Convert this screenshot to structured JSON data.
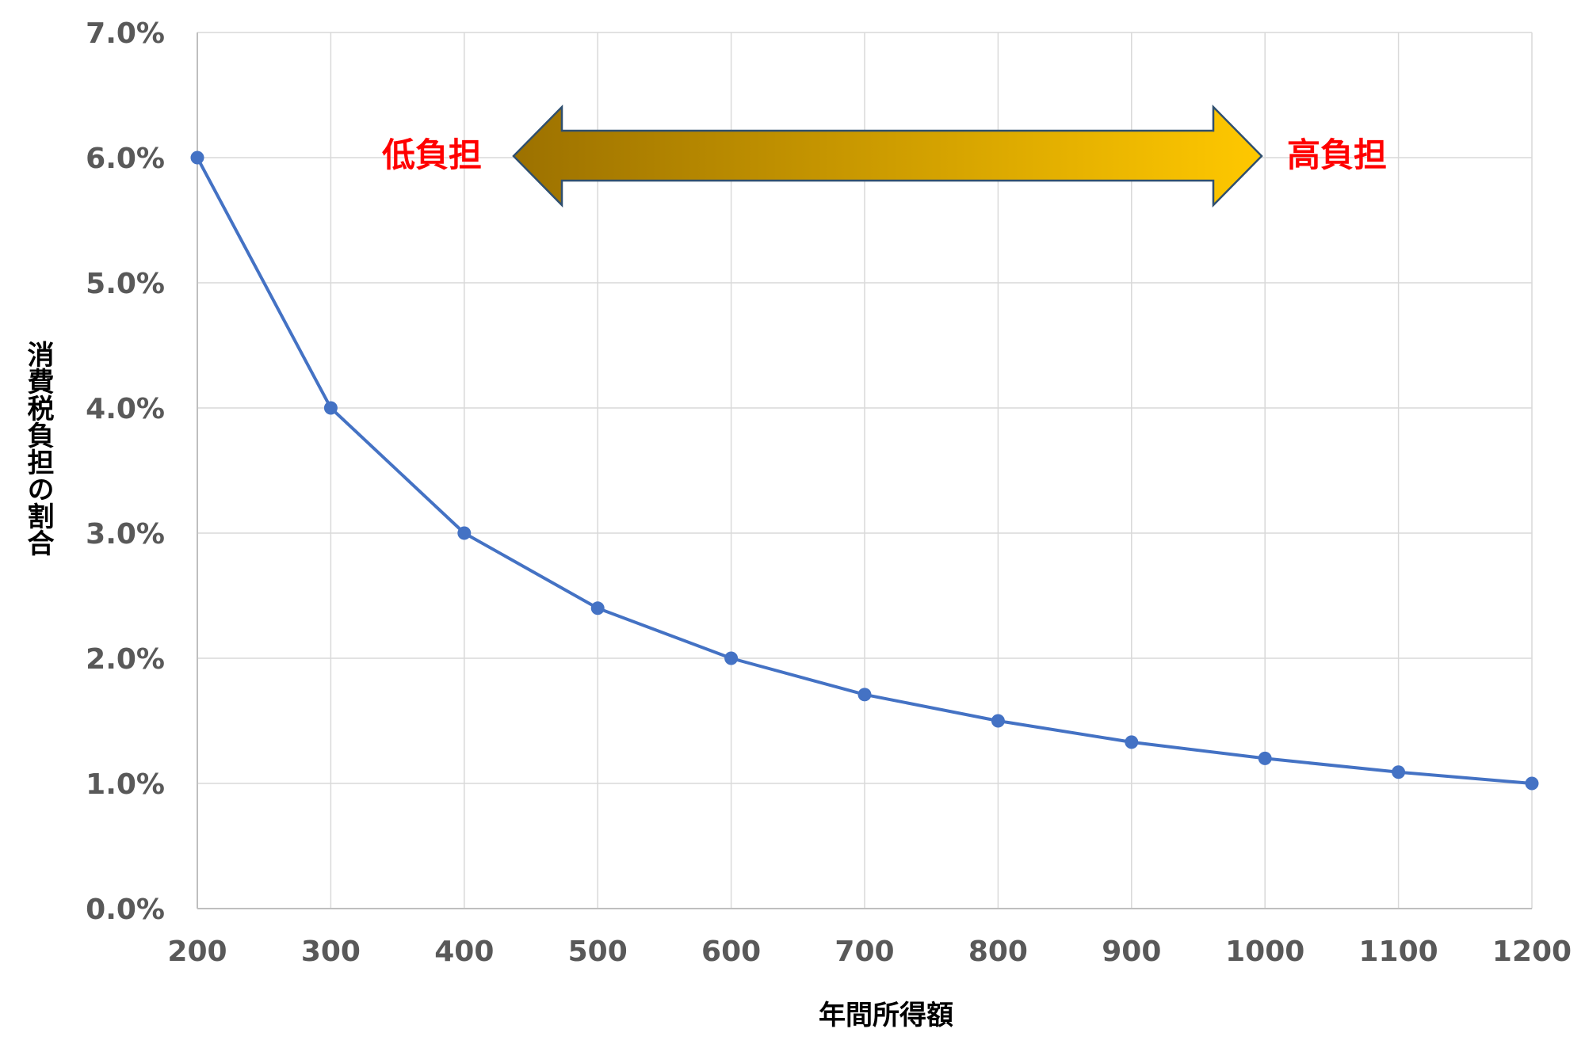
{
  "chart_data": {
    "type": "line",
    "x": [
      200,
      300,
      400,
      500,
      600,
      700,
      800,
      900,
      1000,
      1100,
      1200
    ],
    "series": [
      {
        "values": [
          6.0,
          4.0,
          3.0,
          2.4,
          2.0,
          1.71,
          1.5,
          1.33,
          1.2,
          1.09,
          1.0
        ]
      }
    ],
    "xlabel": "年間所得額",
    "ylabel": "消費税負担の割合",
    "xlim": [
      200,
      1200
    ],
    "ylim": [
      0,
      7
    ],
    "x_ticks": [
      "200",
      "300",
      "400",
      "500",
      "600",
      "700",
      "800",
      "900",
      "1000",
      "1100",
      "1200"
    ],
    "y_ticks": [
      "0.0%",
      "1.0%",
      "2.0%",
      "3.0%",
      "4.0%",
      "5.0%",
      "6.0%",
      "7.0%"
    ],
    "grid": true,
    "annotations": {
      "low_label": "低負担",
      "high_label": "高負担",
      "label_color": "#ff0000",
      "arrow_color_start": "#9c7100",
      "arrow_color_end": "#ffc800",
      "arrow_outline": "#2f4f6f"
    },
    "line_color": "#4472c4",
    "gridline_color": "#d9d9d9"
  }
}
